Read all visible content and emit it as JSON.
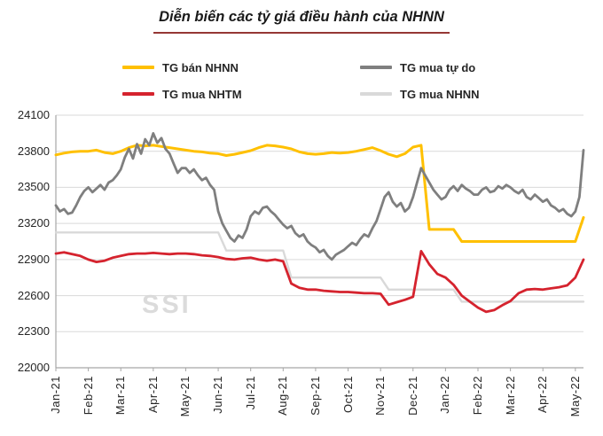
{
  "title": "Diễn biến các tỷ giá điều hành của NHNN",
  "watermark": "SSI",
  "legend": [
    {
      "label": "TG bán NHNN",
      "color": "#FFC000"
    },
    {
      "label": "TG mua tự do",
      "color": "#7F7F7F"
    },
    {
      "label": "TG mua NHTM",
      "color": "#D5232E"
    },
    {
      "label": "TG mua NHNN",
      "color": "#D9D9D9"
    }
  ],
  "chart_data": {
    "type": "line",
    "title": "Diễn biến các tỷ giá điều hành của NHNN",
    "xlabel": "",
    "ylabel": "",
    "ylim": [
      22000,
      24100
    ],
    "y_ticks": [
      22000,
      22300,
      22600,
      22900,
      23200,
      23500,
      23800,
      24100
    ],
    "grid": true,
    "legend_position": "top",
    "x_tick_labels": [
      "Jan-21",
      "Feb-21",
      "Mar-21",
      "Apr-21",
      "May-21",
      "Jun-21",
      "Jul-21",
      "Aug-21",
      "Sep-21",
      "Oct-21",
      "Nov-21",
      "Dec-21",
      "Jan-22",
      "Feb-22",
      "Mar-22",
      "Apr-22",
      "May-22"
    ],
    "points_per_month": 4,
    "base_points": 66,
    "draw_order": [
      3,
      0,
      1,
      2
    ],
    "series": [
      {
        "name": "TG bán NHNN",
        "color": "#FFC000",
        "stroke_width": 3,
        "values": [
          23770,
          23785,
          23795,
          23800,
          23800,
          23810,
          23790,
          23780,
          23800,
          23830,
          23850,
          23845,
          23850,
          23840,
          23830,
          23820,
          23810,
          23800,
          23795,
          23785,
          23780,
          23765,
          23775,
          23790,
          23805,
          23830,
          23850,
          23845,
          23835,
          23820,
          23795,
          23780,
          23775,
          23780,
          23790,
          23785,
          23790,
          23800,
          23815,
          23830,
          23805,
          23775,
          23755,
          23780,
          23835,
          23850,
          23150,
          23150,
          23150,
          23150,
          23050,
          23050,
          23050,
          23050,
          23050,
          23050,
          23050,
          23050,
          23050,
          23050,
          23050,
          23050,
          23050,
          23050,
          23050,
          23250
        ]
      },
      {
        "name": "TG mua tự do",
        "color": "#7F7F7F",
        "stroke_width": 2.8,
        "points_per_month": 8,
        "values": [
          23350,
          23300,
          23320,
          23280,
          23290,
          23350,
          23420,
          23470,
          23500,
          23460,
          23490,
          23520,
          23480,
          23540,
          23560,
          23600,
          23650,
          23750,
          23820,
          23740,
          23860,
          23780,
          23900,
          23850,
          23950,
          23870,
          23910,
          23820,
          23780,
          23700,
          23620,
          23660,
          23660,
          23620,
          23650,
          23600,
          23560,
          23580,
          23520,
          23480,
          23300,
          23200,
          23140,
          23080,
          23050,
          23100,
          23080,
          23150,
          23260,
          23300,
          23280,
          23330,
          23340,
          23300,
          23270,
          23230,
          23190,
          23160,
          23180,
          23120,
          23090,
          23110,
          23050,
          23020,
          23000,
          22960,
          22980,
          22930,
          22900,
          22940,
          22960,
          22980,
          23010,
          23040,
          23020,
          23070,
          23110,
          23090,
          23160,
          23220,
          23320,
          23420,
          23460,
          23380,
          23340,
          23370,
          23300,
          23330,
          23420,
          23540,
          23660,
          23600,
          23540,
          23480,
          23440,
          23400,
          23420,
          23480,
          23510,
          23470,
          23520,
          23490,
          23470,
          23440,
          23440,
          23480,
          23500,
          23460,
          23470,
          23510,
          23490,
          23520,
          23500,
          23470,
          23450,
          23480,
          23420,
          23400,
          23440,
          23410,
          23380,
          23400,
          23350,
          23330,
          23300,
          23320,
          23280,
          23260,
          23300,
          23420,
          23810
        ]
      },
      {
        "name": "TG mua NHTM",
        "color": "#D5232E",
        "stroke_width": 2.8,
        "values": [
          22950,
          22960,
          22945,
          22930,
          22900,
          22880,
          22890,
          22915,
          22930,
          22945,
          22950,
          22950,
          22955,
          22950,
          22945,
          22950,
          22950,
          22945,
          22935,
          22930,
          22920,
          22905,
          22900,
          22910,
          22915,
          22900,
          22890,
          22900,
          22885,
          22700,
          22665,
          22650,
          22650,
          22640,
          22635,
          22630,
          22630,
          22625,
          22620,
          22620,
          22615,
          22525,
          22545,
          22565,
          22590,
          22970,
          22860,
          22780,
          22750,
          22690,
          22600,
          22550,
          22500,
          22465,
          22480,
          22520,
          22555,
          22620,
          22650,
          22655,
          22650,
          22660,
          22670,
          22685,
          22750,
          22900
        ]
      },
      {
        "name": "TG mua NHNN",
        "color": "#D9D9D9",
        "stroke_width": 2.4,
        "values": [
          23125,
          23125,
          23125,
          23125,
          23125,
          23125,
          23125,
          23125,
          23125,
          23125,
          23125,
          23125,
          23125,
          23125,
          23125,
          23125,
          23125,
          23125,
          23125,
          23125,
          23125,
          22975,
          22975,
          22975,
          22975,
          22975,
          22975,
          22975,
          22975,
          22750,
          22750,
          22750,
          22750,
          22750,
          22750,
          22750,
          22750,
          22750,
          22750,
          22750,
          22750,
          22650,
          22650,
          22650,
          22650,
          22650,
          22650,
          22650,
          22650,
          22650,
          22550,
          22550,
          22550,
          22550,
          22550,
          22550,
          22550,
          22550,
          22550,
          22550,
          22550,
          22550,
          22550,
          22550,
          22550,
          22550
        ]
      }
    ]
  }
}
